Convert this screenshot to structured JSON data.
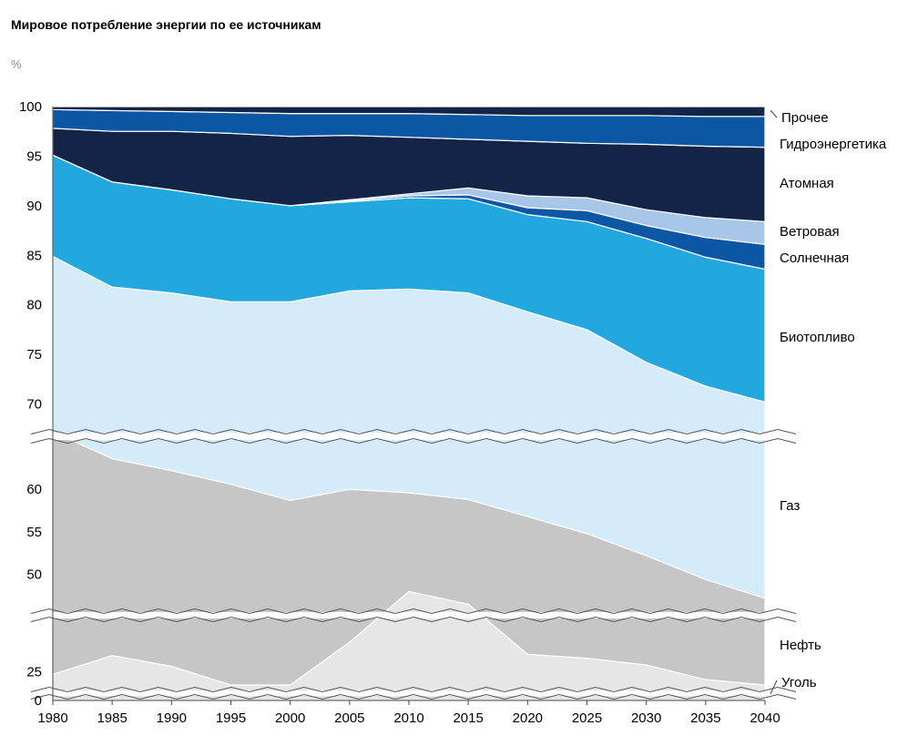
{
  "chart_data": {
    "type": "area",
    "title": "Мировое потребление энергии по ее источникам",
    "ylabel": "%",
    "stacking": "cumulative-percent",
    "ylim": [
      0,
      100
    ],
    "y_axis_breaks": true,
    "x": [
      1980,
      1985,
      1990,
      1995,
      2000,
      2005,
      2010,
      2015,
      2020,
      2025,
      2030,
      2035,
      2040
    ],
    "y_tick_labels": [
      "100",
      "95",
      "90",
      "85",
      "80",
      "75",
      "70",
      "60",
      "55",
      "50",
      "25",
      "0"
    ],
    "x_tick_labels": [
      "1980",
      "1985",
      "1990",
      "1995",
      "2000",
      "2005",
      "2010",
      "2015",
      "2020",
      "2025",
      "2030",
      "2035",
      "2040"
    ],
    "series": [
      {
        "name": "Уголь",
        "color": "#e6e6e6",
        "upper": [
          24.0,
          31.0,
          27.0,
          20.0,
          19.5,
          36.0,
          48.0,
          46.5,
          31.5,
          30.0,
          27.5,
          22.0,
          18.0
        ]
      },
      {
        "name": "Нефть",
        "color": "#c6c6c6",
        "upper": [
          66.0,
          63.6,
          62.2,
          60.6,
          58.7,
          60.0,
          59.6,
          58.8,
          56.8,
          54.8,
          52.2,
          49.4,
          47.2
        ]
      },
      {
        "name": "Газ",
        "color": "#d4ecf9",
        "upper": [
          84.9,
          81.8,
          81.2,
          80.3,
          80.3,
          81.4,
          81.6,
          81.2,
          79.3,
          77.5,
          74.2,
          71.8,
          70.2
        ]
      },
      {
        "name": "Биотопливо",
        "color": "#22a8df",
        "upper": [
          95.1,
          92.4,
          91.6,
          90.7,
          90.0,
          90.4,
          90.8,
          90.7,
          89.1,
          88.4,
          86.7,
          84.8,
          83.6
        ]
      },
      {
        "name": "Солнечная",
        "color": "#0c57a3",
        "upper": [
          95.1,
          92.4,
          91.6,
          90.7,
          90.0,
          90.5,
          91.0,
          91.1,
          89.8,
          89.5,
          88.0,
          86.8,
          86.1
        ]
      },
      {
        "name": "Ветровая",
        "color": "#a8c7e8",
        "upper": [
          95.1,
          92.4,
          91.6,
          90.7,
          90.0,
          90.6,
          91.2,
          91.8,
          91.0,
          90.8,
          89.6,
          88.8,
          88.4
        ]
      },
      {
        "name": "Атомная",
        "color": "#142447",
        "upper": [
          97.8,
          97.5,
          97.5,
          97.3,
          97.0,
          97.1,
          96.9,
          96.7,
          96.5,
          96.3,
          96.2,
          96.0,
          95.9
        ]
      },
      {
        "name": "Гидроэнергетика",
        "color": "#0c57a3",
        "upper": [
          99.7,
          99.6,
          99.5,
          99.4,
          99.3,
          99.3,
          99.3,
          99.2,
          99.1,
          99.1,
          99.1,
          99.0,
          99.0
        ]
      },
      {
        "name": "Прочее",
        "color": "#142447",
        "upper": [
          100,
          100,
          100,
          100,
          100,
          100,
          100,
          100,
          100,
          100,
          100,
          100,
          100
        ]
      }
    ]
  }
}
